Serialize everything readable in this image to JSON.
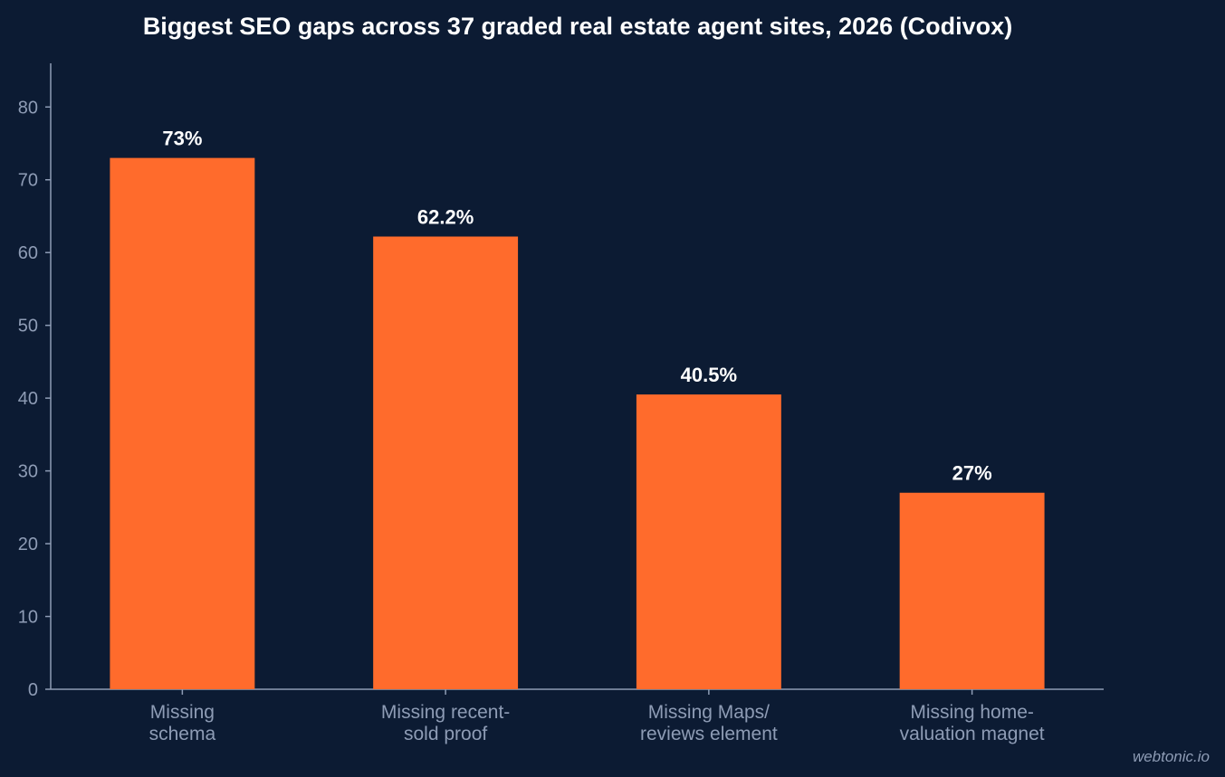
{
  "chart_data": {
    "type": "bar",
    "title": "Biggest SEO gaps across 37 graded real estate agent sites, 2026 (Codivox)",
    "xlabel": "",
    "ylabel": "",
    "categories": [
      [
        "Missing",
        "schema"
      ],
      [
        "Missing recent-",
        "sold proof"
      ],
      [
        "Missing Maps/",
        "reviews element"
      ],
      [
        "Missing home-",
        "valuation magnet"
      ]
    ],
    "values": [
      73,
      62.2,
      40.5,
      27
    ],
    "data_labels": [
      "73%",
      "62.2%",
      "40.5%",
      "27%"
    ],
    "ylim": [
      0,
      86
    ],
    "yticks": [
      0,
      10,
      20,
      30,
      40,
      50,
      60,
      70,
      80
    ],
    "grid": false,
    "legend": "none",
    "bar_color": "#ff6b2c"
  },
  "watermark": "webtonic.io",
  "colors": {
    "background": "#0c1b33",
    "axis": "#8e9cb5",
    "text": "#ffffff"
  }
}
